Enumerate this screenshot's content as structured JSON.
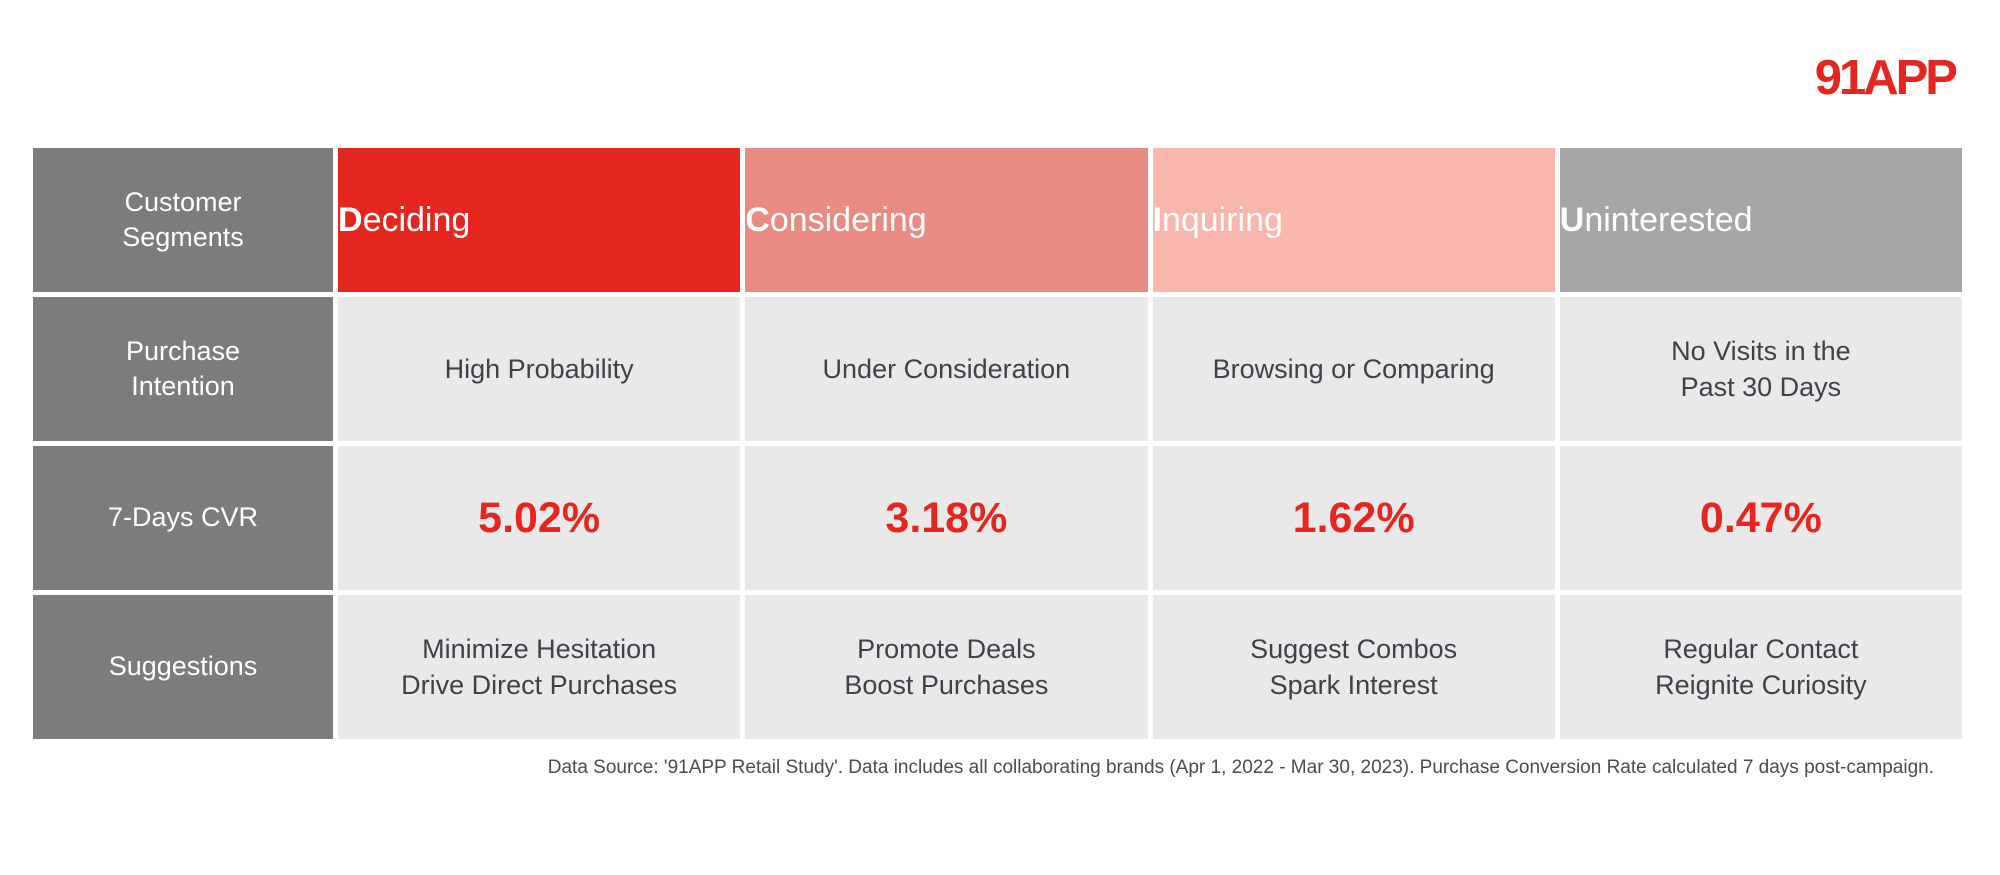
{
  "logo": {
    "text": "91APP"
  },
  "colors": {
    "brand_red": "#E4261E",
    "deciding_bg": "#E4261E",
    "considering_bg": "#E98B80",
    "inquiring_bg": "#F8B6AD",
    "uninterested_bg": "#A6A6A6",
    "row_header_bg": "#7C7C7C",
    "cell_bg": "#E9E9E9",
    "body_text": "#40424B"
  },
  "table": {
    "corner": {
      "line1": "Customer",
      "line2": "Segments"
    },
    "row_headers": [
      {
        "line1": "Purchase",
        "line2": "Intention"
      },
      {
        "line1": "7-Days CVR",
        "line2": ""
      },
      {
        "line1": "Suggestions",
        "line2": ""
      }
    ],
    "segments": [
      {
        "name": "Deciding",
        "intention": {
          "line1": "High Probability",
          "line2": ""
        },
        "cvr": "5.02%",
        "suggestion": {
          "line1": "Minimize Hesitation",
          "line2": "Drive Direct Purchases"
        }
      },
      {
        "name": "Considering",
        "intention": {
          "line1": "Under Consideration",
          "line2": ""
        },
        "cvr": "3.18%",
        "suggestion": {
          "line1": "Promote Deals",
          "line2": "Boost Purchases"
        }
      },
      {
        "name": "Inquiring",
        "intention": {
          "line1": "Browsing or Comparing",
          "line2": ""
        },
        "cvr": "1.62%",
        "suggestion": {
          "line1": "Suggest Combos",
          "line2": "Spark Interest"
        }
      },
      {
        "name": "Uninterested",
        "intention": {
          "line1": "No Visits in the",
          "line2": "Past 30 Days"
        },
        "cvr": "0.47%",
        "suggestion": {
          "line1": "Regular Contact",
          "line2": "Reignite Curiosity"
        }
      }
    ]
  },
  "chart_data": {
    "type": "table",
    "title": "",
    "columns": [
      "Customer Segments",
      "Deciding",
      "Considering",
      "Inquiring",
      "Uninterested"
    ],
    "rows": [
      [
        "Purchase Intention",
        "High Probability",
        "Under Consideration",
        "Browsing or Comparing",
        "No Visits in the Past 30 Days"
      ],
      [
        "7-Days CVR",
        "5.02%",
        "3.18%",
        "1.62%",
        "0.47%"
      ],
      [
        "Suggestions",
        "Minimize Hesitation Drive Direct Purchases",
        "Promote Deals Boost Purchases",
        "Suggest Combos Spark Interest",
        "Regular Contact Reignite Curiosity"
      ]
    ],
    "series": [
      {
        "name": "7-Days CVR (%)",
        "values": [
          5.02,
          3.18,
          1.62,
          0.47
        ]
      }
    ],
    "categories": [
      "Deciding",
      "Considering",
      "Inquiring",
      "Uninterested"
    ]
  },
  "footer": {
    "text": "Data Source: '91APP Retail Study'. Data includes all collaborating brands (Apr 1, 2022 - Mar 30, 2023). Purchase Conversion Rate calculated 7 days post-campaign."
  }
}
